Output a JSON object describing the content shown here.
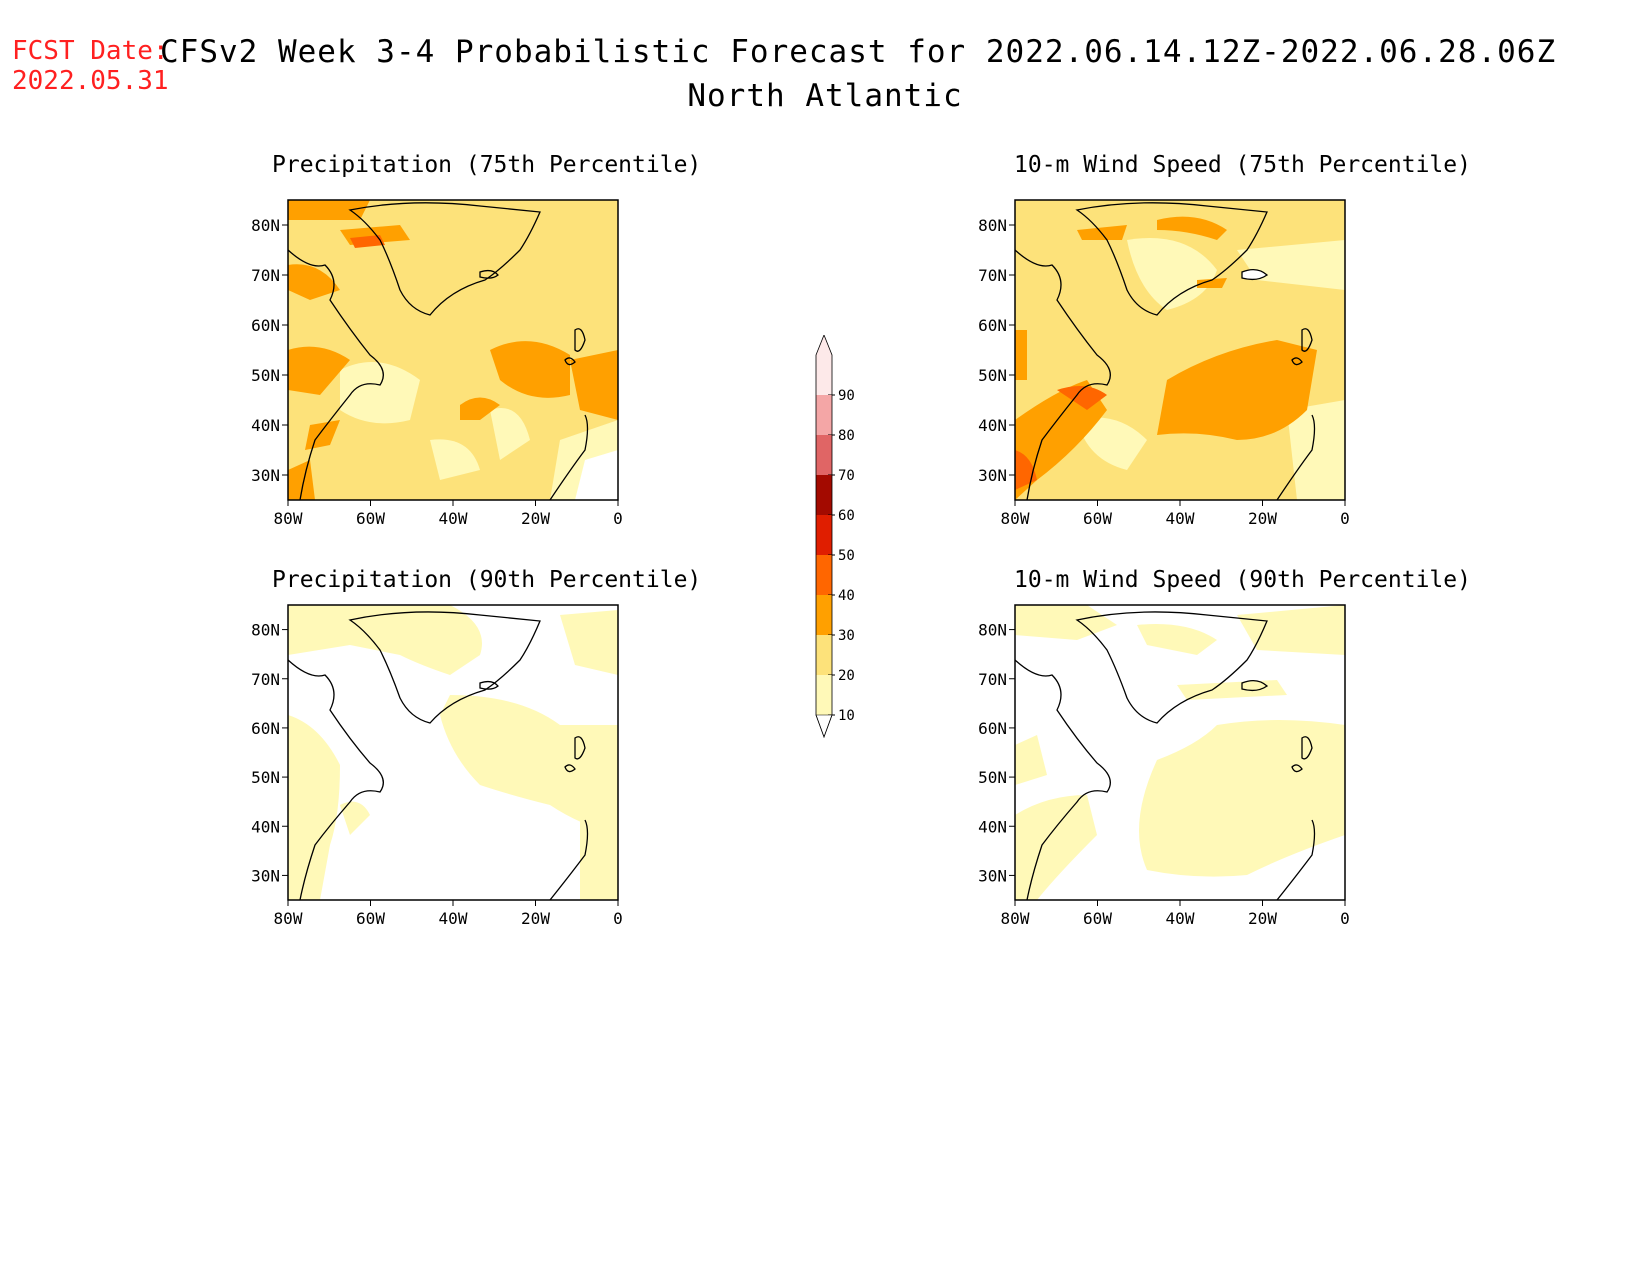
{
  "header": {
    "fcst_label": "FCST Date:",
    "fcst_date": "2022.05.31",
    "title": "CFSv2 Week 3-4 Probabilistic Forecast for 2022.06.14.12Z-2022.06.28.06Z",
    "subtitle": "North Atlantic"
  },
  "panels": [
    {
      "title": "Precipitation (75th Percentile)"
    },
    {
      "title": "10-m Wind Speed (75th Percentile)"
    },
    {
      "title": "Precipitation (90th Percentile)"
    },
    {
      "title": "10-m Wind Speed (90th Percentile)"
    }
  ],
  "axes": {
    "lat_labels": [
      "80N",
      "70N",
      "60N",
      "50N",
      "40N",
      "30N"
    ],
    "lon_labels": [
      "80W",
      "60W",
      "40W",
      "20W",
      "0"
    ]
  },
  "colorbar": {
    "labels": [
      "90",
      "80",
      "70",
      "60",
      "50",
      "40",
      "30",
      "20",
      "10"
    ],
    "colors": [
      "#fde9e9",
      "#f4a6a6",
      "#e06565",
      "#a30a00",
      "#e01e00",
      "#ff6600",
      "#ffa000",
      "#fde27a",
      "#fff9b8"
    ]
  }
}
